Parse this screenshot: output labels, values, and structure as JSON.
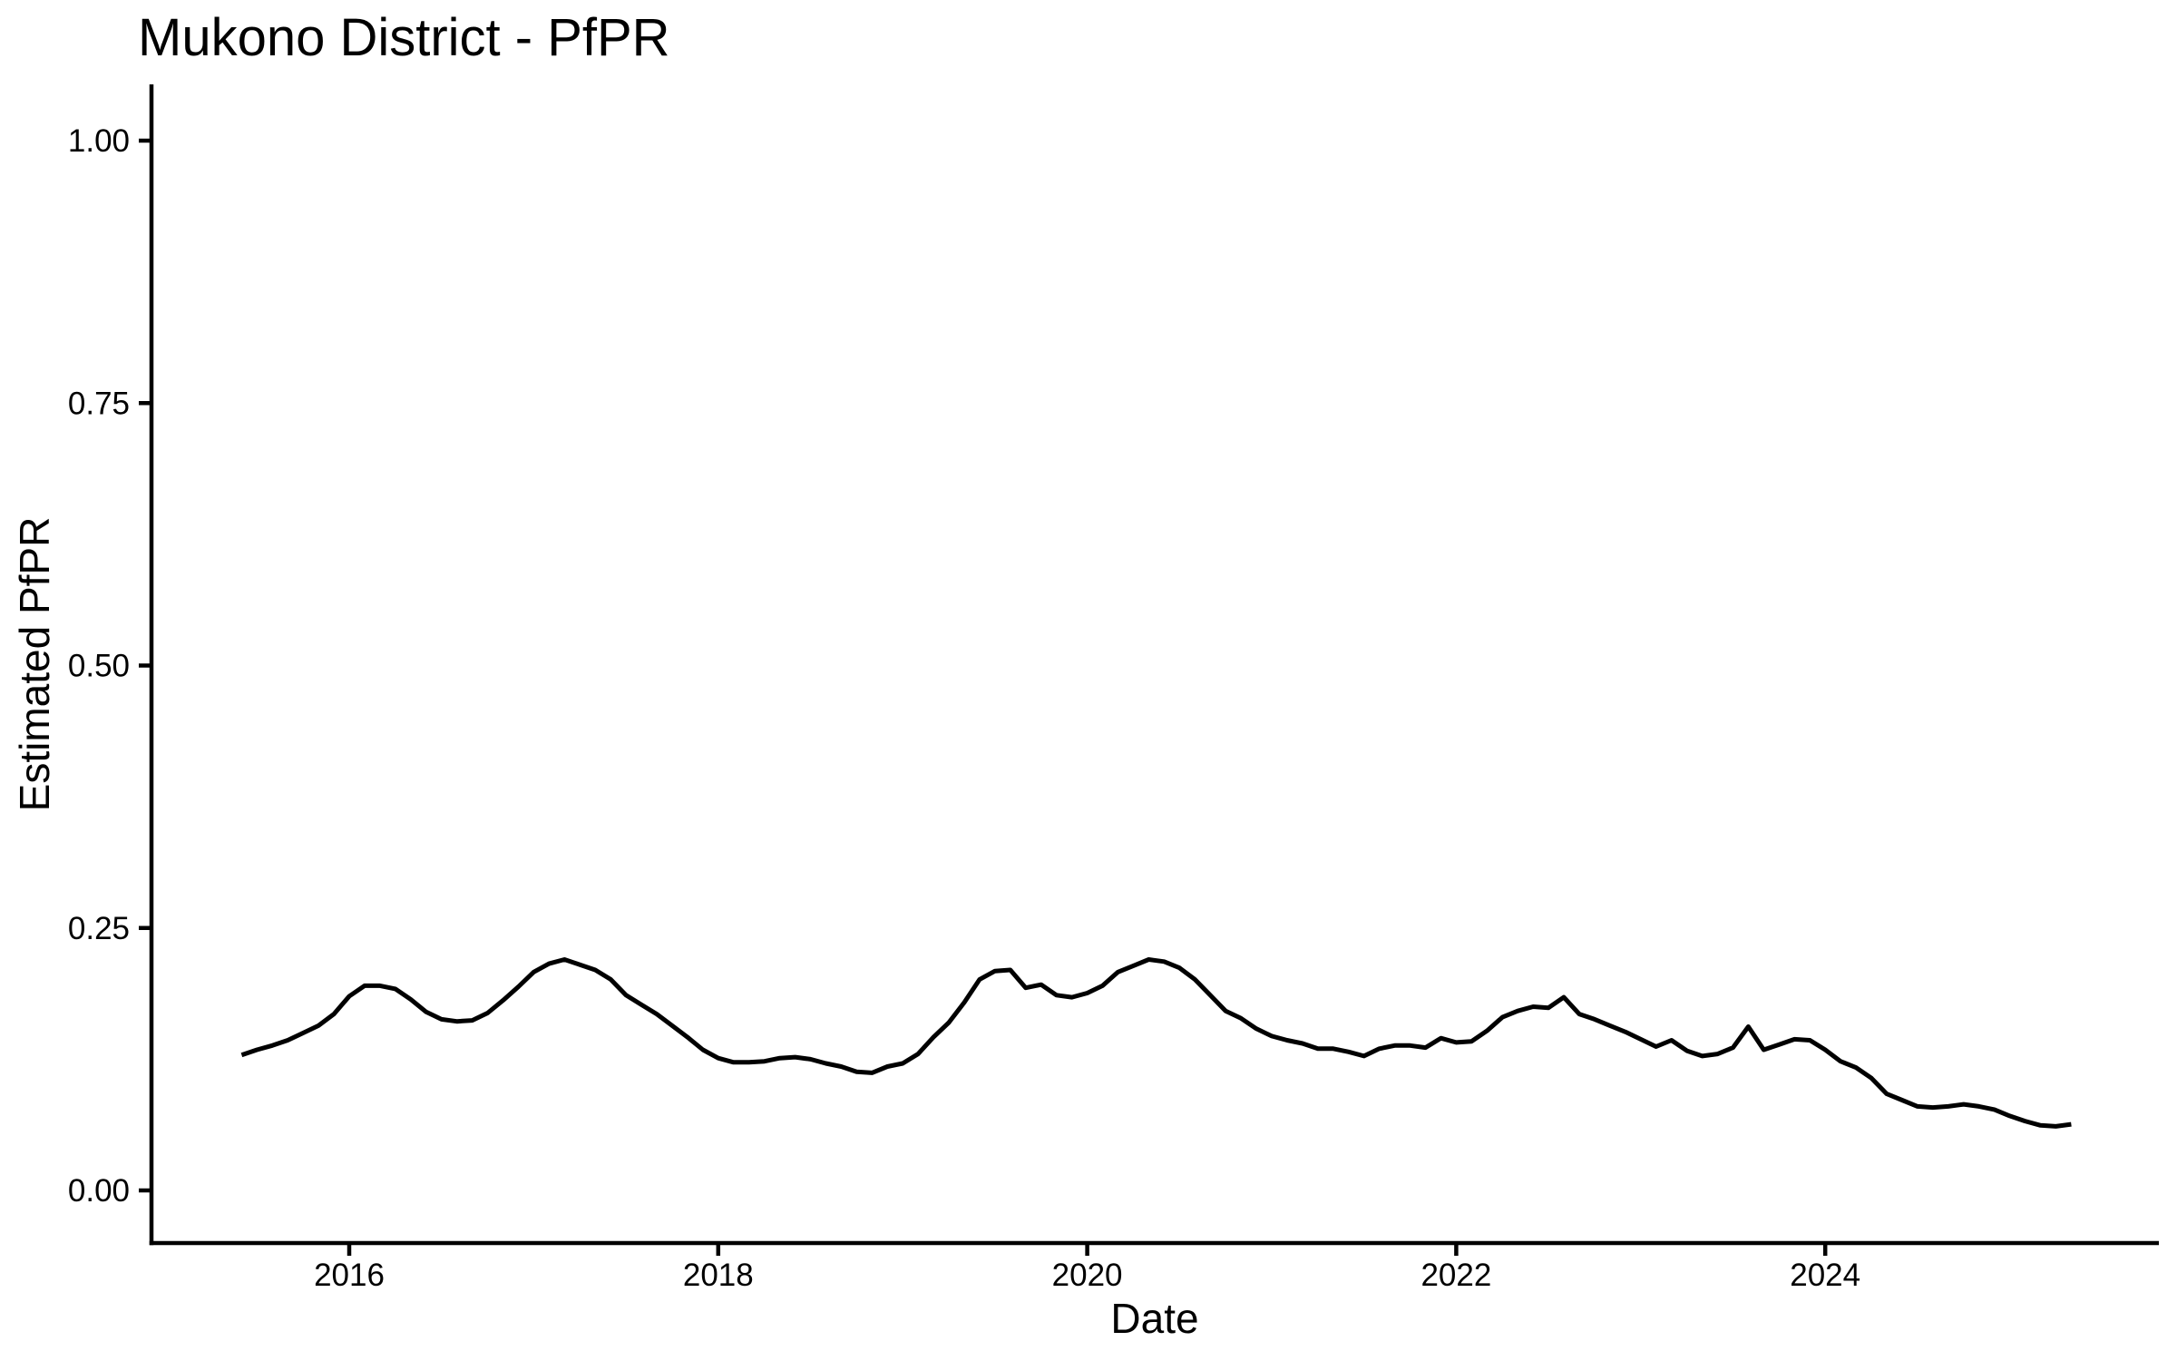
{
  "chart_data": {
    "type": "line",
    "title": "Mukono District - PfPR",
    "xlabel": "Date",
    "ylabel": "Estimated PfPR",
    "ylim": [
      0,
      1
    ],
    "y_ticks": [
      0,
      0.25,
      0.5,
      0.75,
      1
    ],
    "y_tick_labels": [
      "0.00",
      "0.25",
      "0.50",
      "0.75",
      "1.00"
    ],
    "x_tick_years": [
      2016,
      2018,
      2020,
      2022,
      2024
    ],
    "x_tick_labels": [
      "2016",
      "2018",
      "2020",
      "2022",
      "2024"
    ],
    "grid": false,
    "legend_position": "none",
    "line_color": "#000000",
    "axis_color": "#000000",
    "text_color": "#000000",
    "series": [
      {
        "name": "Estimated PfPR",
        "x": [
          "2015-06",
          "2015-07",
          "2015-08",
          "2015-09",
          "2015-10",
          "2015-11",
          "2015-12",
          "2016-01",
          "2016-02",
          "2016-03",
          "2016-04",
          "2016-05",
          "2016-06",
          "2016-07",
          "2016-08",
          "2016-09",
          "2016-10",
          "2016-11",
          "2016-12",
          "2017-01",
          "2017-02",
          "2017-03",
          "2017-04",
          "2017-05",
          "2017-06",
          "2017-07",
          "2017-08",
          "2017-09",
          "2017-10",
          "2017-11",
          "2017-12",
          "2018-01",
          "2018-02",
          "2018-03",
          "2018-04",
          "2018-05",
          "2018-06",
          "2018-07",
          "2018-08",
          "2018-09",
          "2018-10",
          "2018-11",
          "2018-12",
          "2019-01",
          "2019-02",
          "2019-03",
          "2019-04",
          "2019-05",
          "2019-06",
          "2019-07",
          "2019-08",
          "2019-09",
          "2019-10",
          "2019-11",
          "2019-12",
          "2020-01",
          "2020-02",
          "2020-03",
          "2020-04",
          "2020-05",
          "2020-06",
          "2020-07",
          "2020-08",
          "2020-09",
          "2020-10",
          "2020-11",
          "2020-12",
          "2021-01",
          "2021-02",
          "2021-03",
          "2021-04",
          "2021-05",
          "2021-06",
          "2021-07",
          "2021-08",
          "2021-09",
          "2021-10",
          "2021-11",
          "2021-12",
          "2022-01",
          "2022-02",
          "2022-03",
          "2022-04",
          "2022-05",
          "2022-06",
          "2022-07",
          "2022-08",
          "2022-09",
          "2022-10",
          "2022-11",
          "2022-12",
          "2023-01",
          "2023-02",
          "2023-03",
          "2023-04",
          "2023-05",
          "2023-06",
          "2023-07",
          "2023-08",
          "2023-09",
          "2023-10",
          "2023-11",
          "2023-12",
          "2024-01",
          "2024-02",
          "2024-03",
          "2024-04",
          "2024-05",
          "2024-06",
          "2024-07",
          "2024-08",
          "2024-09",
          "2024-10",
          "2024-11",
          "2024-12",
          "2025-01",
          "2025-02",
          "2025-03",
          "2025-04",
          "2025-05"
        ],
        "y": [
          0.129,
          0.134,
          0.138,
          0.143,
          0.15,
          0.157,
          0.168,
          0.185,
          0.195,
          0.195,
          0.192,
          0.182,
          0.17,
          0.163,
          0.161,
          0.162,
          0.169,
          0.181,
          0.194,
          0.208,
          0.216,
          0.22,
          0.215,
          0.21,
          0.201,
          0.186,
          0.177,
          0.168,
          0.157,
          0.146,
          0.134,
          0.126,
          0.122,
          0.122,
          0.123,
          0.126,
          0.127,
          0.125,
          0.121,
          0.118,
          0.113,
          0.112,
          0.118,
          0.121,
          0.13,
          0.146,
          0.16,
          0.179,
          0.201,
          0.209,
          0.21,
          0.193,
          0.196,
          0.186,
          0.184,
          0.188,
          0.195,
          0.208,
          0.214,
          0.22,
          0.218,
          0.212,
          0.201,
          0.186,
          0.171,
          0.164,
          0.154,
          0.147,
          0.143,
          0.14,
          0.135,
          0.135,
          0.132,
          0.128,
          0.135,
          0.138,
          0.138,
          0.136,
          0.145,
          0.141,
          0.142,
          0.152,
          0.165,
          0.171,
          0.175,
          0.174,
          0.184,
          0.168,
          0.163,
          0.157,
          0.151,
          0.144,
          0.137,
          0.143,
          0.133,
          0.128,
          0.13,
          0.136,
          0.156,
          0.134,
          0.139,
          0.144,
          0.143,
          0.134,
          0.123,
          0.117,
          0.107,
          0.092,
          0.086,
          0.08,
          0.079,
          0.08,
          0.082,
          0.08,
          0.077,
          0.071,
          0.066,
          0.062,
          0.061,
          0.063
        ]
      }
    ]
  }
}
